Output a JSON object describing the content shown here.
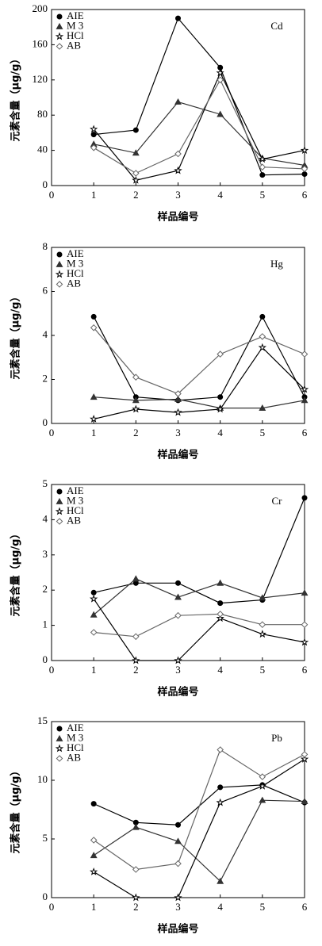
{
  "chart_data": [
    {
      "type": "line",
      "annotation": "Cd",
      "xlabel": "样品编号",
      "ylabel": "元素含量（μg/g）",
      "x": [
        1,
        2,
        3,
        4,
        5,
        6
      ],
      "xlim": [
        0,
        6
      ],
      "xticks": [
        0,
        1,
        2,
        3,
        4,
        5,
        6
      ],
      "ylim": [
        0,
        200
      ],
      "yticks": [
        0,
        40,
        80,
        120,
        160,
        200
      ],
      "legend": "upper-left",
      "series": [
        {
          "name": "AIE",
          "color": "#000000",
          "marker": "circle",
          "values": [
            58,
            63,
            190,
            134,
            12,
            13
          ]
        },
        {
          "name": "M 3",
          "color": "#333333",
          "marker": "triangle",
          "values": [
            47,
            37,
            95,
            81,
            31,
            23
          ]
        },
        {
          "name": "HCl",
          "color": "#000000",
          "marker": "star",
          "values": [
            64,
            6,
            17,
            128,
            30,
            40
          ]
        },
        {
          "name": "AB",
          "color": "#666666",
          "marker": "diamond",
          "values": [
            43,
            14,
            36,
            120,
            21,
            19
          ]
        }
      ]
    },
    {
      "type": "line",
      "annotation": "Hg",
      "xlabel": "样品编号",
      "ylabel": "元素含量（μg/g）",
      "x": [
        1,
        2,
        3,
        4,
        5,
        6
      ],
      "xlim": [
        0,
        6
      ],
      "xticks": [
        0,
        1,
        2,
        3,
        4,
        5,
        6
      ],
      "ylim": [
        0,
        8
      ],
      "yticks": [
        0,
        2,
        4,
        6,
        8
      ],
      "legend": "upper-left",
      "series": [
        {
          "name": "AIE",
          "color": "#000000",
          "marker": "circle",
          "values": [
            4.85,
            1.2,
            1.05,
            1.2,
            4.85,
            1.2
          ]
        },
        {
          "name": "M 3",
          "color": "#333333",
          "marker": "triangle",
          "values": [
            1.2,
            1.05,
            1.1,
            0.7,
            0.7,
            1.05
          ]
        },
        {
          "name": "HCl",
          "color": "#000000",
          "marker": "star",
          "values": [
            0.2,
            0.65,
            0.5,
            0.65,
            3.45,
            1.55
          ]
        },
        {
          "name": "AB",
          "color": "#666666",
          "marker": "diamond",
          "values": [
            4.35,
            2.1,
            1.35,
            3.15,
            3.95,
            3.15
          ]
        }
      ]
    },
    {
      "type": "line",
      "annotation": "Cr",
      "xlabel": "样品编号",
      "ylabel": "元素含量（μg/g）",
      "x": [
        1,
        2,
        3,
        4,
        5,
        6
      ],
      "xlim": [
        0,
        6
      ],
      "xticks": [
        0,
        1,
        2,
        3,
        4,
        5,
        6
      ],
      "ylim": [
        0,
        5
      ],
      "yticks": [
        0,
        1,
        2,
        3,
        4,
        5
      ],
      "legend": "upper-left",
      "series": [
        {
          "name": "AIE",
          "color": "#000000",
          "marker": "circle",
          "values": [
            1.93,
            2.2,
            2.2,
            1.63,
            1.72,
            4.62
          ]
        },
        {
          "name": "M 3",
          "color": "#333333",
          "marker": "triangle",
          "values": [
            1.3,
            2.32,
            1.8,
            2.2,
            1.78,
            1.92
          ]
        },
        {
          "name": "HCl",
          "color": "#000000",
          "marker": "star",
          "values": [
            1.75,
            0,
            0,
            1.2,
            0.75,
            0.52
          ]
        },
        {
          "name": "AB",
          "color": "#666666",
          "marker": "diamond",
          "values": [
            0.8,
            0.68,
            1.28,
            1.32,
            1.02,
            1.02
          ]
        }
      ]
    },
    {
      "type": "line",
      "annotation": "Pb",
      "xlabel": "样品编号",
      "ylabel": "元素含量（μg/g）",
      "x": [
        1,
        2,
        3,
        4,
        5,
        6
      ],
      "xlim": [
        0,
        6
      ],
      "xticks": [
        0,
        1,
        2,
        3,
        4,
        5,
        6
      ],
      "ylim": [
        0,
        15
      ],
      "yticks": [
        0,
        5,
        10,
        15
      ],
      "legend": "upper-left",
      "series": [
        {
          "name": "AIE",
          "color": "#000000",
          "marker": "circle",
          "values": [
            8.0,
            6.4,
            6.2,
            9.4,
            9.6,
            8.1
          ]
        },
        {
          "name": "M 3",
          "color": "#333333",
          "marker": "triangle",
          "values": [
            3.6,
            6.0,
            4.8,
            1.4,
            8.3,
            8.2
          ]
        },
        {
          "name": "HCl",
          "color": "#000000",
          "marker": "star",
          "values": [
            2.2,
            0,
            0,
            8.1,
            9.5,
            11.8
          ]
        },
        {
          "name": "AB",
          "color": "#666666",
          "marker": "diamond",
          "values": [
            4.9,
            2.4,
            2.9,
            12.6,
            10.3,
            12.2
          ]
        }
      ]
    }
  ]
}
